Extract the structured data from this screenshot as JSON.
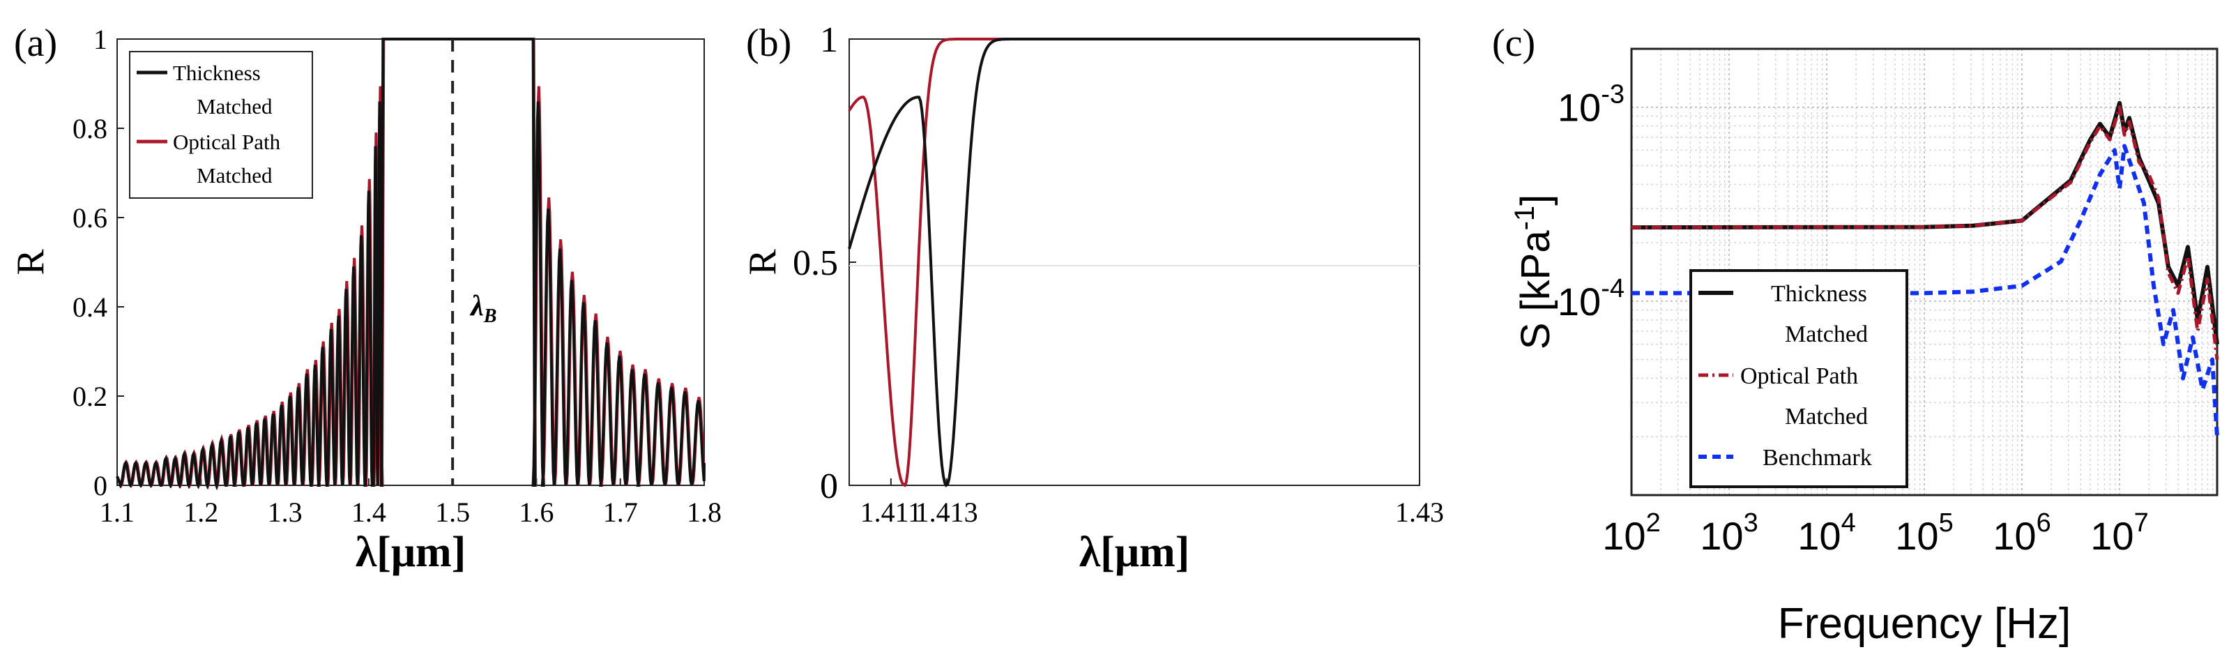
{
  "panel_labels": [
    "(a)",
    "(b)",
    "(c)"
  ],
  "colors": {
    "thickness": "#111111",
    "optical": "#a8182a",
    "benchmark": "#1030ee",
    "grid": "#bbbbbb"
  },
  "chart_data": [
    {
      "type": "line",
      "panel": "(a)",
      "xlabel": "λ[μm]",
      "ylabel": "R",
      "xlim": [
        1.1,
        1.8
      ],
      "ylim": [
        0,
        1
      ],
      "xticks": [
        "1.1",
        "1.2",
        "1.3",
        "1.4",
        "1.5",
        "1.6",
        "1.7",
        "1.8"
      ],
      "yticks": [
        "0",
        "0.2",
        "0.4",
        "0.6",
        "0.8",
        "1"
      ],
      "grid": false,
      "legend_position": "top-left",
      "annotation": {
        "text": "λ",
        "subscript": "B",
        "x": 1.5
      },
      "stopband": [
        1.415,
        1.598
      ],
      "series": [
        {
          "name": "Thickness Matched",
          "color": "#111111",
          "peak_wavelengths": [
            1.11,
            1.122,
            1.134,
            1.146,
            1.158,
            1.169,
            1.18,
            1.191,
            1.202,
            1.213,
            1.224,
            1.235,
            1.245,
            1.256,
            1.266,
            1.276,
            1.286,
            1.296,
            1.306,
            1.316,
            1.326,
            1.336,
            1.345,
            1.355,
            1.364,
            1.373,
            1.382,
            1.391,
            1.4,
            1.408,
            1.413
          ],
          "peak_values": [
            0.05,
            0.05,
            0.05,
            0.05,
            0.06,
            0.06,
            0.07,
            0.07,
            0.08,
            0.09,
            0.1,
            0.11,
            0.12,
            0.13,
            0.14,
            0.15,
            0.16,
            0.18,
            0.2,
            0.22,
            0.25,
            0.27,
            0.31,
            0.35,
            0.38,
            0.44,
            0.49,
            0.56,
            0.66,
            0.76,
            0.86
          ],
          "peak_wavelengths_right": [
            1.602,
            1.614,
            1.628,
            1.642,
            1.656,
            1.67,
            1.684,
            1.699,
            1.714,
            1.729,
            1.745,
            1.761,
            1.777,
            1.793
          ],
          "peak_values_right": [
            0.86,
            0.62,
            0.53,
            0.46,
            0.41,
            0.37,
            0.32,
            0.29,
            0.26,
            0.25,
            0.23,
            0.22,
            0.21,
            0.19
          ]
        },
        {
          "name": "Optical Path Matched",
          "color": "#a8182a"
        }
      ]
    },
    {
      "type": "line",
      "panel": "(b)",
      "xlabel": "λ[μm]",
      "ylabel": "R",
      "xlim": [
        1.4095,
        1.43
      ],
      "ylim": [
        0,
        1
      ],
      "xticks": [
        "1.411",
        "1.413",
        "1.43"
      ],
      "yticks": [
        "0",
        "0.5",
        "1"
      ],
      "grid": false,
      "series": [
        {
          "name": "Thickness Matched",
          "color": "#111111",
          "start": [
            1.4095,
            0.53
          ],
          "peak": [
            1.412,
            0.87
          ],
          "minimum": [
            1.413,
            0.0
          ],
          "plateau_from": 1.4145,
          "plateau_value": 1.0
        },
        {
          "name": "Optical Path Matched",
          "color": "#a8182a",
          "start": [
            1.4095,
            0.84
          ],
          "peak": [
            1.41,
            0.87
          ],
          "minimum": [
            1.4115,
            0.0
          ],
          "plateau_from": 1.4127,
          "plateau_value": 1.0
        }
      ]
    },
    {
      "type": "line",
      "panel": "(c)",
      "xlabel": "Frequency [Hz]",
      "ylabel": "S [kPa⁻¹]",
      "ylabel_parts": {
        "main": "S [kPa",
        "sup": "-1",
        "tail": "]"
      },
      "xscale": "log",
      "yscale": "log",
      "xlim": [
        100,
        100000000
      ],
      "ylim": [
        1e-05,
        0.002
      ],
      "xticks": [
        {
          "base": "10",
          "exp": "2"
        },
        {
          "base": "10",
          "exp": "3"
        },
        {
          "base": "10",
          "exp": "4"
        },
        {
          "base": "10",
          "exp": "5"
        },
        {
          "base": "10",
          "exp": "6"
        },
        {
          "base": "10",
          "exp": "7"
        }
      ],
      "yticks": [
        {
          "base": "10",
          "exp": "-4"
        },
        {
          "base": "10",
          "exp": "-3"
        }
      ],
      "grid": true,
      "legend_position": "bottom-left",
      "series": [
        {
          "name": "Thickness Matched",
          "color": "#111111",
          "x": [
            100,
            100000,
            316228,
            1000000,
            3162278,
            5011872,
            6309573,
            7943282,
            10000000,
            11220185,
            12589254,
            15848932,
            19952623,
            25118864,
            31622777,
            39810717,
            50118723,
            63095734,
            79432823,
            100000000
          ],
          "y": [
            0.00024,
            0.000241,
            0.000245,
            0.00026,
            0.00042,
            0.00068,
            0.00082,
            0.0007,
            0.00105,
            0.00075,
            0.00088,
            0.00055,
            0.00042,
            0.00032,
            0.00015,
            0.00012,
            0.00019,
            8e-05,
            0.00015,
            6e-05
          ]
        },
        {
          "name": "Optical Path Matched",
          "color": "#a8182a",
          "x": [
            100,
            100000,
            316228,
            1000000,
            3162278,
            5011872,
            6309573,
            7943282,
            10000000,
            11220185,
            12589254,
            15848932,
            19952623,
            25118864,
            31622777,
            39810717,
            50118723,
            63095734,
            79432823,
            100000000
          ],
          "y": [
            0.00024,
            0.000241,
            0.000245,
            0.00026,
            0.00041,
            0.00066,
            0.0008,
            0.00068,
            0.001,
            0.00072,
            0.00084,
            0.00052,
            0.00045,
            0.00034,
            0.00014,
            0.00011,
            0.00017,
            7e-05,
            0.00013,
            5e-05
          ]
        },
        {
          "name": "Benchmark",
          "color": "#1030ee",
          "x": [
            100,
            100000,
            316228,
            1000000,
            2511886,
            3981072,
            6309573,
            8912509,
            10000000,
            11220185,
            14125375,
            17782794,
            22387211,
            28183829,
            35481339,
            44668359,
            56234133,
            70794578,
            89125094,
            100000000
          ],
          "y": [
            0.00011,
            0.00011,
            0.000112,
            0.00012,
            0.00016,
            0.00026,
            0.00045,
            0.0006,
            0.00038,
            0.00063,
            0.00045,
            0.00032,
            0.00012,
            6e-05,
            9e-05,
            4e-05,
            6.5e-05,
            3.5e-05,
            5e-05,
            2e-05
          ]
        }
      ]
    }
  ]
}
